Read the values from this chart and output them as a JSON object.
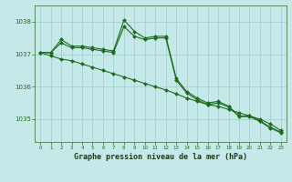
{
  "xlabel": "Graphe pression niveau de la mer (hPa)",
  "ylabel": "",
  "background_color": "#c5e8e8",
  "plot_bg_color": "#c5e8e8",
  "grid_color": "#9ecece",
  "line_color": "#1e6b1e",
  "marker_color": "#1e6b1e",
  "ylim": [
    1034.3,
    1038.5
  ],
  "xlim": [
    -0.5,
    23.5
  ],
  "yticks": [
    1035,
    1036,
    1037,
    1038
  ],
  "xticks": [
    0,
    1,
    2,
    3,
    4,
    5,
    6,
    7,
    8,
    9,
    10,
    11,
    12,
    13,
    14,
    15,
    16,
    17,
    18,
    19,
    20,
    21,
    22,
    23
  ],
  "series": [
    {
      "x": [
        0,
        1,
        2,
        3,
        4,
        5,
        6,
        7,
        8,
        9,
        10,
        11,
        12,
        13,
        14,
        15,
        16,
        17,
        18,
        19,
        20,
        21,
        22,
        23
      ],
      "y": [
        1037.05,
        1037.05,
        1037.45,
        1037.25,
        1037.25,
        1037.2,
        1037.15,
        1037.1,
        1038.05,
        1037.7,
        1037.5,
        1037.55,
        1037.55,
        1036.25,
        1035.85,
        1035.65,
        1035.5,
        1035.55,
        1035.4,
        1035.1,
        1035.1,
        1034.95,
        1034.75,
        1034.6
      ]
    },
    {
      "x": [
        0,
        1,
        2,
        3,
        4,
        5,
        6,
        7,
        8,
        9,
        10,
        11,
        12,
        13,
        14,
        15,
        16,
        17,
        18,
        19,
        20,
        21,
        22,
        23
      ],
      "y": [
        1037.05,
        1037.05,
        1037.35,
        1037.2,
        1037.2,
        1037.15,
        1037.1,
        1037.05,
        1037.85,
        1037.55,
        1037.45,
        1037.5,
        1037.5,
        1036.2,
        1035.8,
        1035.6,
        1035.45,
        1035.5,
        1035.38,
        1035.08,
        1035.08,
        1034.93,
        1034.73,
        1034.58
      ]
    },
    {
      "x": [
        0,
        1,
        2,
        3,
        4,
        5,
        6,
        7,
        8,
        9,
        10,
        11,
        12,
        13,
        14,
        15,
        16,
        17,
        18,
        19,
        20,
        21,
        22,
        23
      ],
      "y": [
        1037.05,
        1036.95,
        1036.85,
        1036.8,
        1036.7,
        1036.6,
        1036.5,
        1036.4,
        1036.3,
        1036.2,
        1036.1,
        1036.0,
        1035.9,
        1035.78,
        1035.65,
        1035.55,
        1035.45,
        1035.4,
        1035.3,
        1035.2,
        1035.1,
        1035.0,
        1034.85,
        1034.65
      ]
    }
  ]
}
